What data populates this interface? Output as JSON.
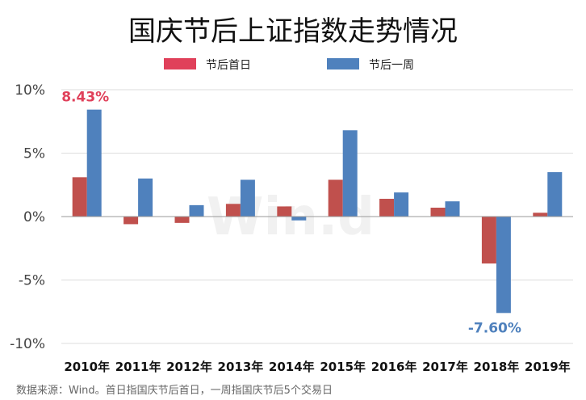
{
  "chart_data": {
    "type": "bar",
    "title": "国庆节后上证指数走势情况",
    "categories": [
      "2010年",
      "2011年",
      "2012年",
      "2013年",
      "2014年",
      "2015年",
      "2016年",
      "2017年",
      "2018年",
      "2019年"
    ],
    "series": [
      {
        "name": "节后首日",
        "color": "#c0504d",
        "values": [
          3.1,
          -0.6,
          -0.5,
          1.0,
          0.8,
          2.9,
          1.4,
          0.7,
          -3.7,
          0.3
        ]
      },
      {
        "name": "节后一周",
        "color": "#4f81bd",
        "values": [
          8.43,
          3.0,
          0.9,
          2.9,
          -0.3,
          6.8,
          1.9,
          1.2,
          -7.6,
          3.5
        ]
      }
    ],
    "legend_colors": {
      "节后首日": "#e0405a",
      "节后一周": "#4f81bd"
    },
    "y_ticks": [
      "10%",
      "5%",
      "0%",
      "-5%",
      "-10%"
    ],
    "ylim": [
      -10,
      10
    ],
    "grid": true,
    "legend_position": "top",
    "annotations": [
      {
        "text": "8.43%",
        "category": "2010年",
        "series": "节后一周",
        "color": "#e0405a"
      },
      {
        "text": "-7.60%",
        "category": "2018年",
        "series": "节后一周",
        "color": "#4f81bd"
      }
    ],
    "watermark": "Win.d",
    "source": "数据来源：Wind。首日指国庆节后首日，一周指国庆节后5个交易日"
  }
}
